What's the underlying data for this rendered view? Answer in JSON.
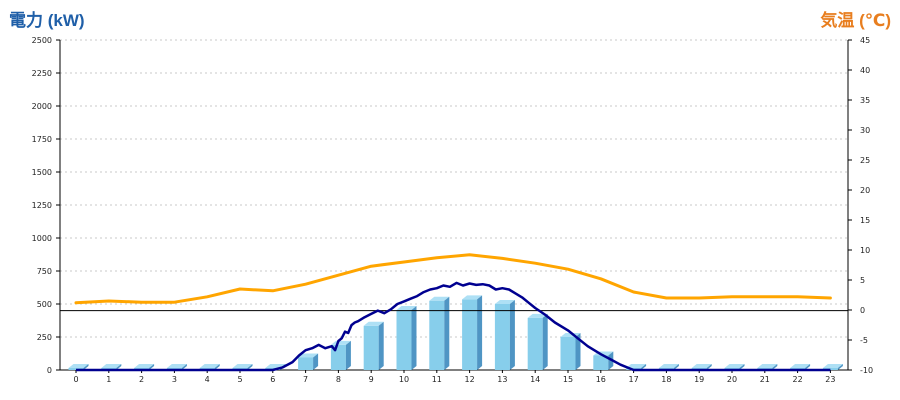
{
  "chart_data": {
    "type": "bar+line",
    "title_left": "電力 (kW)",
    "title_right": "気温 (℃)",
    "y_left": {
      "min": 0,
      "max": 2500,
      "ticks": [
        0,
        250,
        500,
        750,
        1000,
        1250,
        1500,
        1750,
        2000,
        2250,
        2500
      ]
    },
    "y_right": {
      "min": -10,
      "max": 45,
      "ticks": [
        -10,
        -5,
        0,
        5,
        10,
        15,
        20,
        25,
        30,
        35,
        40,
        45
      ]
    },
    "x_ticks": [
      "0",
      "1",
      "2",
      "3",
      "4",
      "5",
      "6",
      "7",
      "8",
      "9",
      "10",
      "11",
      "12",
      "13",
      "14",
      "15",
      "16",
      "17",
      "18",
      "19",
      "20",
      "21",
      "22",
      "23"
    ],
    "grid": true,
    "reference_line_kw": 450,
    "colors": {
      "bar": "#87ceeb",
      "bar_top": "#aee0f5",
      "bar_side": "#4f95c4",
      "power_line": "#000090",
      "temp_line": "#ffa500",
      "left_title": "#1f5fa8",
      "right_title": "#e87e1f"
    },
    "series": [
      {
        "name": "hourly-power",
        "kind": "bar",
        "axis": "left",
        "values": [
          0,
          0,
          0,
          0,
          0,
          0,
          0,
          95,
          190,
          335,
          455,
          525,
          535,
          500,
          395,
          250,
          110,
          0,
          0,
          0,
          0,
          0,
          0,
          0
        ]
      },
      {
        "name": "power",
        "kind": "line",
        "axis": "left",
        "x": [
          0,
          1,
          2,
          3,
          4,
          5,
          6,
          6.3,
          6.6,
          6.8,
          7,
          7.2,
          7.4,
          7.6,
          7.8,
          7.9,
          8,
          8.1,
          8.2,
          8.3,
          8.4,
          8.5,
          8.6,
          8.8,
          9,
          9.2,
          9.4,
          9.6,
          9.8,
          10,
          10.2,
          10.4,
          10.6,
          10.8,
          11,
          11.2,
          11.4,
          11.6,
          11.8,
          12,
          12.2,
          12.4,
          12.6,
          12.8,
          13,
          13.2,
          13.4,
          13.6,
          13.8,
          14,
          14.3,
          14.6,
          15,
          15.3,
          15.6,
          16,
          16.3,
          16.6,
          17,
          18,
          19,
          20,
          21,
          22,
          23
        ],
        "y": [
          0,
          0,
          0,
          0,
          0,
          0,
          0,
          20,
          60,
          110,
          150,
          165,
          190,
          165,
          180,
          150,
          220,
          240,
          290,
          280,
          340,
          360,
          370,
          400,
          425,
          450,
          430,
          460,
          500,
          520,
          540,
          560,
          590,
          610,
          620,
          640,
          630,
          660,
          640,
          655,
          645,
          650,
          640,
          610,
          620,
          610,
          580,
          550,
          510,
          470,
          420,
          360,
          300,
          240,
          180,
          120,
          80,
          40,
          0,
          0,
          0,
          0,
          0,
          0,
          0
        ]
      },
      {
        "name": "temperature",
        "kind": "line",
        "axis": "right",
        "x": [
          0,
          1,
          2,
          3,
          4,
          5,
          6,
          7,
          8,
          9,
          10,
          11,
          12,
          13,
          14,
          15,
          16,
          17,
          18,
          19,
          20,
          21,
          22,
          23
        ],
        "y": [
          1.2,
          1.5,
          1.3,
          1.3,
          2.2,
          3.5,
          3.2,
          4.3,
          5.8,
          7.3,
          8.0,
          8.7,
          9.2,
          8.6,
          7.8,
          6.8,
          5.2,
          3.0,
          2.0,
          2.0,
          2.2,
          2.2,
          2.2,
          2.0
        ]
      }
    ]
  }
}
